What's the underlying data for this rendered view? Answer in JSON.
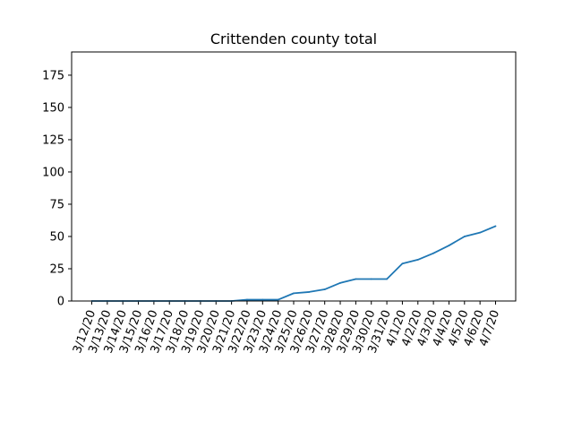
{
  "chart_data": {
    "type": "line",
    "title": "Crittenden county total",
    "xlabel": "",
    "ylabel": "",
    "categories": [
      "3/12/20",
      "3/13/20",
      "3/14/20",
      "3/15/20",
      "3/16/20",
      "3/17/20",
      "3/18/20",
      "3/19/20",
      "3/20/20",
      "3/21/20",
      "3/22/20",
      "3/23/20",
      "3/24/20",
      "3/25/20",
      "3/26/20",
      "3/27/20",
      "3/28/20",
      "3/29/20",
      "3/30/20",
      "3/31/20",
      "4/1/20",
      "4/2/20",
      "4/3/20",
      "4/4/20",
      "4/5/20",
      "4/6/20",
      "4/7/20"
    ],
    "series": [
      {
        "values": [
          0,
          0,
          0,
          0,
          0,
          0,
          0,
          0,
          0,
          0,
          1,
          1,
          1,
          6,
          7,
          9,
          14,
          17,
          17,
          17,
          29,
          32,
          37,
          43,
          50,
          53,
          58
        ],
        "color": "#1f77b4"
      }
    ],
    "ylim": [
      0,
      193
    ],
    "yticks": [
      0,
      25,
      50,
      75,
      100,
      125,
      150,
      175
    ],
    "grid": false,
    "legend": "none"
  }
}
